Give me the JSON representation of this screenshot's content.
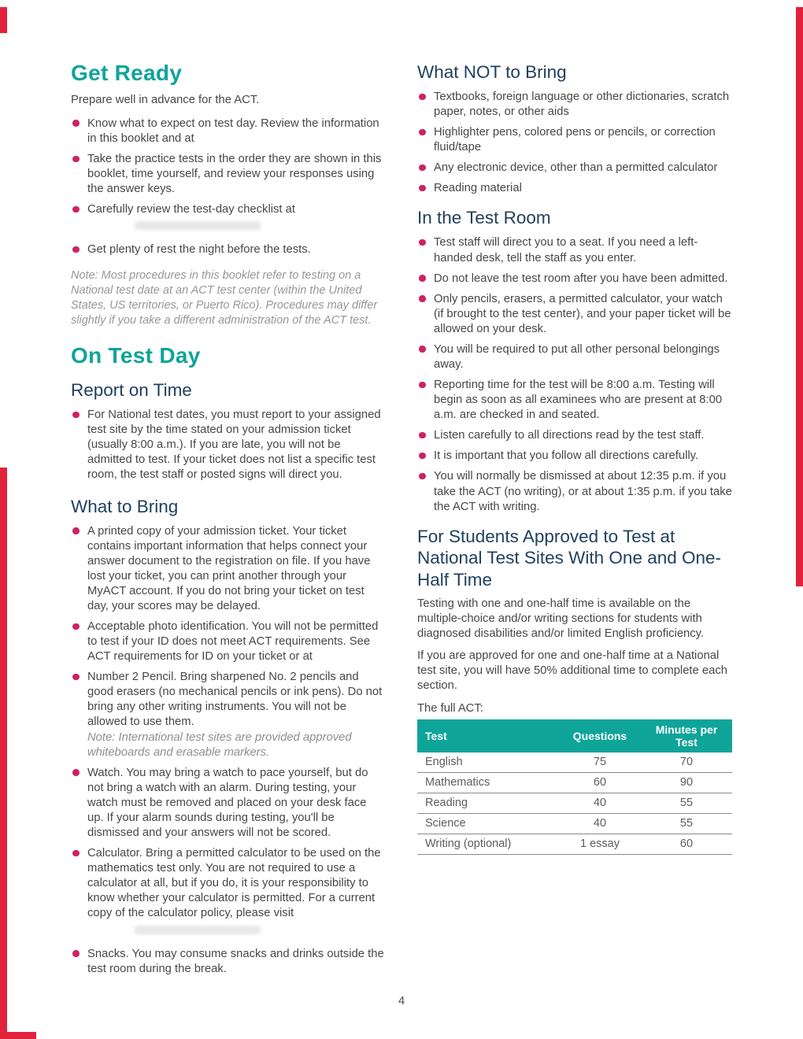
{
  "colors": {
    "heading_teal": "#0fa49a",
    "subheading_navy": "#21405f",
    "bullet_pink": "#cd2164",
    "border_red": "#e2213c",
    "table_header_bg": "#0fa49a",
    "body_text": "#474747"
  },
  "page": {
    "number": "4"
  },
  "left": {
    "get_ready": {
      "title": "Get Ready",
      "intro": "Prepare well in advance for the ACT.",
      "bullets": [
        {
          "text": "Know what to expect on test day. Review the information in this booklet and at"
        },
        {
          "text": "Take the practice tests in the order they are shown in this booklet, time yourself, and review your responses using the answer keys."
        },
        {
          "text": "Carefully review the test-day checklist at",
          "redacted": true,
          "gap": true
        },
        {
          "text": "Get plenty of rest the night before the tests."
        }
      ],
      "note": "Note: Most procedures in this booklet refer to testing on a National test date at an ACT test center (within the United States, US territories, or Puerto Rico). Procedures may differ slightly if you take a different administration of the ACT test."
    },
    "on_test_day": {
      "title": "On Test Day"
    },
    "report_on_time": {
      "title": "Report on Time",
      "bullets": [
        {
          "text": "For National test dates, you must report to your assigned test site by the time stated on your admission ticket (usually 8:00 a.m.). If you are late, you will not be admitted to test. If your ticket does not list a specific test room, the test staff or posted signs will direct you."
        }
      ]
    },
    "what_to_bring": {
      "title": "What to Bring",
      "bullets": [
        {
          "text": "A printed copy of your admission ticket. Your ticket contains important information that helps connect your answer document to the registration on file. If you have lost your ticket, you can print another through your MyACT account. If you do not bring your ticket on test day, your scores may be delayed."
        },
        {
          "text": "Acceptable photo identification. You will not be permitted to test if your ID does not meet ACT requirements. See ACT requirements for ID on your ticket or at"
        },
        {
          "text": "Number 2 Pencil. Bring sharpened No. 2 pencils and good erasers (no mechanical pencils or ink pens). Do not bring any other writing instruments. You will not be allowed to use them.",
          "note": "Note: International test sites are provided approved whiteboards and erasable markers."
        },
        {
          "text": "Watch. You may bring a watch to pace yourself, but do not bring a watch with an alarm. During testing, your watch must be removed and placed on your desk face up. If your alarm sounds during testing, you'll be dismissed and your answers will not be scored."
        },
        {
          "text": "Calculator. Bring a permitted calculator to be used on the mathematics test only. You are not required to use a calculator at all, but if you do, it is your responsibility to know whether your calculator is permitted. For a current copy of the calculator policy, please visit",
          "redacted": true,
          "gap": true
        },
        {
          "text": "Snacks. You may consume snacks and drinks outside the test room during the break."
        }
      ]
    }
  },
  "right": {
    "what_not_to_bring": {
      "title": "What NOT to Bring",
      "bullets": [
        {
          "text": "Textbooks, foreign language or other dictionaries, scratch paper, notes, or other aids"
        },
        {
          "text": "Highlighter pens, colored pens or pencils, or correction fluid/tape"
        },
        {
          "text": "Any electronic device, other than a permitted calculator"
        },
        {
          "text": "Reading material"
        }
      ]
    },
    "in_the_test_room": {
      "title": "In the Test Room",
      "bullets": [
        {
          "text": "Test staff will direct you to a seat. If you need a left-handed desk, tell the staff as you enter."
        },
        {
          "text": "Do not leave the test room after you have been admitted."
        },
        {
          "text": "Only pencils, erasers, a permitted calculator, your watch (if brought to the test center), and your paper ticket will be allowed on your desk."
        },
        {
          "text": "You will be required to put all other personal belongings away."
        },
        {
          "text": "Reporting time for the test will be 8:00 a.m. Testing will begin as soon as all examinees who are present at 8:00 a.m. are checked in and seated."
        },
        {
          "text": "Listen carefully to all directions read by the test staff."
        },
        {
          "text": "It is important that you follow all directions carefully."
        },
        {
          "text": "You will normally be dismissed at about 12:35 p.m. if you take the ACT (no writing), or at about 1:35 p.m. if you take the ACT with writing."
        }
      ]
    },
    "one_half_time": {
      "title": "For Students Approved to Test at National Test Sites With One and One-Half Time",
      "paragraph1": "Testing with one and one-half time is available on the multiple-choice and/or writing sections for students with diagnosed disabilities and/or limited English proficiency.",
      "paragraph2": "If you are approved for one and one-half time at a National test site, you will have 50% additional time to complete each section.",
      "table_intro": "The full ACT:",
      "table": {
        "headers": [
          "Test",
          "Questions",
          "Minutes per Test"
        ],
        "rows": [
          [
            "English",
            "75",
            "70"
          ],
          [
            "Mathematics",
            "60",
            "90"
          ],
          [
            "Reading",
            "40",
            "55"
          ],
          [
            "Science",
            "40",
            "55"
          ],
          [
            "Writing (optional)",
            "1 essay",
            "60"
          ]
        ]
      }
    }
  }
}
